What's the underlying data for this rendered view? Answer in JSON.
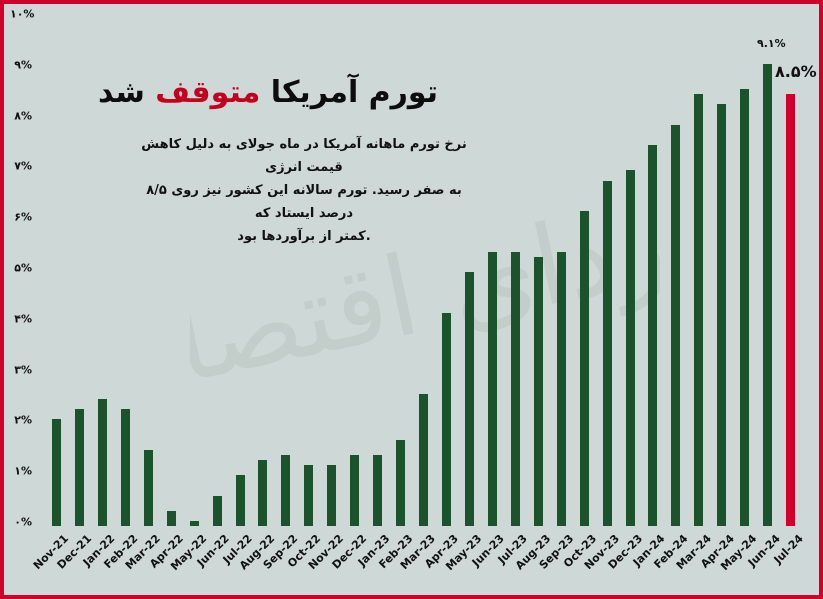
{
  "title": {
    "part1": "تورم آمریکا ",
    "accent": "متوقف",
    "part2": " شد"
  },
  "subtitle": {
    "line1": "نرخ تورم ماهانه آمریکا در ماه جولای به دلیل کاهش قیمت انرژی",
    "line2": "به صفر رسید. تورم سالانه این کشور نیز روی ۸/۵ درصد ایستاد که",
    "line3": ".کمتر از برآوردها بود"
  },
  "watermark": "فردای اقتصاد",
  "annotations": {
    "peak": "۹.۱%",
    "latest": "۸.۵%"
  },
  "colors": {
    "bar": "#1b532d",
    "highlight": "#d0002c",
    "background": "#ced8d6",
    "border": "#d0002c"
  },
  "y_ticks": [
    "۰%",
    "۱%",
    "۲%",
    "۳%",
    "۴%",
    "۵%",
    "۶%",
    "۷%",
    "۸%",
    "۹%",
    "۱۰%"
  ],
  "chart_data": {
    "type": "bar",
    "title": "تورم آمریکا متوقف شد",
    "xlabel": "",
    "ylabel": "",
    "ylim": [
      0,
      10
    ],
    "grid": false,
    "legend": "none",
    "categories": [
      "Nov-21",
      "Dec-21",
      "Jan-22",
      "Feb-22",
      "Mar-22",
      "Apr-22",
      "May-22",
      "Jun-22",
      "Jul-22",
      "Aug-22",
      "Sep-22",
      "Oct-22",
      "Nov-22",
      "Dec-22",
      "Jan-23",
      "Feb-23",
      "Mar-23",
      "Apr-23",
      "May-23",
      "Jun-23",
      "Jul-23",
      "Aug-23",
      "Sep-23",
      "Oct-23",
      "Nov-23",
      "Dec-23",
      "Jan-24",
      "Feb-24",
      "Mar-24",
      "Apr-24",
      "May-24",
      "Jun-24",
      "Jul-24"
    ],
    "values": [
      2.1,
      2.3,
      2.5,
      2.3,
      1.5,
      0.3,
      0.1,
      0.6,
      1.0,
      1.3,
      1.4,
      1.2,
      1.2,
      1.4,
      1.4,
      1.7,
      2.6,
      4.2,
      5.0,
      5.4,
      5.4,
      5.3,
      5.4,
      6.2,
      6.8,
      7.0,
      7.5,
      7.9,
      8.5,
      8.3,
      8.6,
      9.1,
      8.5
    ],
    "highlight_index": 32,
    "annotations": [
      {
        "category": "Jun-24",
        "text": "9.1%"
      },
      {
        "category": "Jul-24",
        "text": "8.5%"
      }
    ]
  }
}
